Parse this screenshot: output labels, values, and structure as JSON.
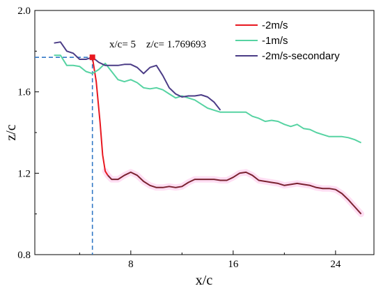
{
  "chart_data": {
    "type": "line",
    "xlabel": "x/c",
    "ylabel": "z/c",
    "xlim": [
      0.5,
      27.0
    ],
    "ylim": [
      0.8,
      2.0
    ],
    "x_ticks": [
      8,
      16,
      24
    ],
    "x_tick_labels": [
      "8",
      "16",
      "24"
    ],
    "y_ticks": [
      0.8,
      1.2,
      1.6,
      2.0
    ],
    "y_tick_labels": [
      "0.8",
      "1.2",
      "1.6",
      "2.0"
    ],
    "grid": false,
    "legend_position": "top-right",
    "annotation": {
      "text": "x/c= 5    z/c= 1.769693",
      "point_x": 5,
      "point_y": 1.769693,
      "marker_color": "#e8171f",
      "guide_color": "#3278c6"
    },
    "series": [
      {
        "name": "-2m/s",
        "color": "#e8171f",
        "later_color": "#7a2230",
        "shadow_color": "#ffb6e4",
        "x": [
          5.0,
          5.3,
          5.6,
          5.8,
          6.0,
          6.2,
          6.5,
          7.0,
          7.5,
          8.0,
          8.5,
          9.0,
          9.5,
          10.0,
          10.5,
          11.0,
          11.5,
          12.0,
          12.5,
          13.0,
          13.5,
          14.0,
          14.5,
          15.0,
          15.5,
          16.0,
          16.5,
          17.0,
          17.5,
          18.0,
          18.5,
          19.0,
          19.5,
          20.0,
          20.5,
          21.0,
          21.5,
          22.0,
          22.5,
          23.0,
          23.5,
          24.0,
          24.5,
          25.0,
          25.5,
          26.0
        ],
        "y": [
          1.769693,
          1.65,
          1.45,
          1.29,
          1.21,
          1.19,
          1.17,
          1.17,
          1.19,
          1.205,
          1.19,
          1.16,
          1.14,
          1.13,
          1.13,
          1.135,
          1.13,
          1.135,
          1.155,
          1.17,
          1.17,
          1.17,
          1.17,
          1.165,
          1.165,
          1.18,
          1.2,
          1.205,
          1.19,
          1.165,
          1.16,
          1.155,
          1.15,
          1.14,
          1.145,
          1.15,
          1.145,
          1.14,
          1.13,
          1.125,
          1.125,
          1.12,
          1.1,
          1.07,
          1.035,
          1.0
        ]
      },
      {
        "name": "-1m/s",
        "color": "#56d3a2",
        "x": [
          2.0,
          2.5,
          3.0,
          3.5,
          4.0,
          4.5,
          5.0,
          5.5,
          6.0,
          6.5,
          7.0,
          7.5,
          8.0,
          8.5,
          9.0,
          9.5,
          10.0,
          10.5,
          11.0,
          11.5,
          12.0,
          12.5,
          13.0,
          13.5,
          14.0,
          14.5,
          15.0,
          15.5,
          16.0,
          16.5,
          17.0,
          17.5,
          18.0,
          18.5,
          19.0,
          19.5,
          20.0,
          20.5,
          21.0,
          21.5,
          22.0,
          22.5,
          23.0,
          23.5,
          24.0,
          24.5,
          25.0,
          25.5,
          26.0
        ],
        "y": [
          1.78,
          1.78,
          1.73,
          1.73,
          1.725,
          1.7,
          1.69,
          1.71,
          1.74,
          1.7,
          1.66,
          1.65,
          1.66,
          1.645,
          1.62,
          1.615,
          1.62,
          1.61,
          1.59,
          1.57,
          1.58,
          1.57,
          1.56,
          1.54,
          1.52,
          1.51,
          1.5,
          1.5,
          1.5,
          1.5,
          1.5,
          1.48,
          1.47,
          1.455,
          1.46,
          1.455,
          1.44,
          1.43,
          1.44,
          1.42,
          1.415,
          1.4,
          1.39,
          1.38,
          1.38,
          1.38,
          1.375,
          1.365,
          1.35
        ]
      },
      {
        "name": "-2m/s-secondary",
        "color": "#4b3c86",
        "x": [
          2.0,
          2.5,
          3.0,
          3.5,
          4.0,
          4.5,
          5.0,
          5.5,
          6.0,
          6.5,
          7.0,
          7.5,
          8.0,
          8.5,
          9.0,
          9.5,
          10.0,
          10.5,
          11.0,
          11.5,
          12.0,
          12.5,
          13.0,
          13.5,
          14.0,
          14.5,
          15.0
        ],
        "y": [
          1.84,
          1.845,
          1.8,
          1.79,
          1.76,
          1.76,
          1.77,
          1.745,
          1.73,
          1.73,
          1.73,
          1.735,
          1.735,
          1.72,
          1.69,
          1.72,
          1.73,
          1.68,
          1.62,
          1.59,
          1.575,
          1.58,
          1.58,
          1.585,
          1.575,
          1.55,
          1.51
        ]
      }
    ]
  }
}
